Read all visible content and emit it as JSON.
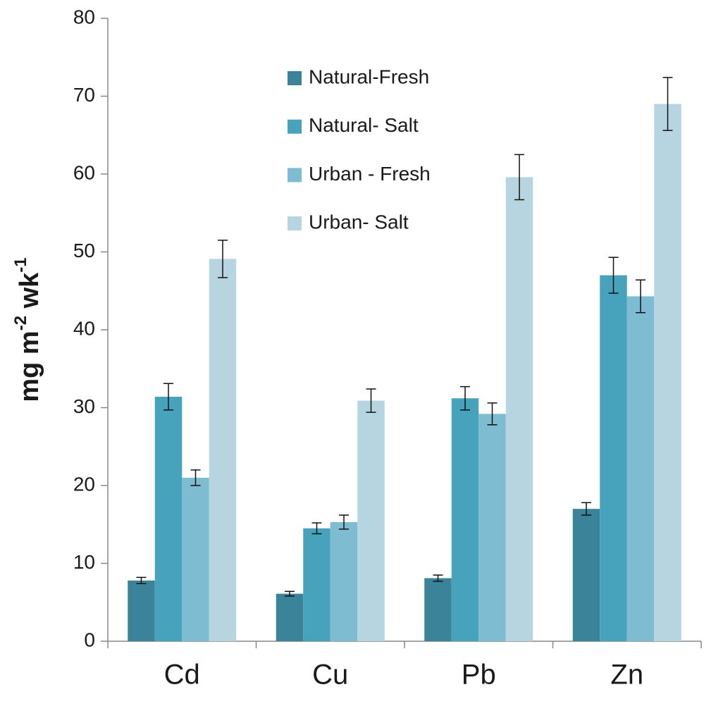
{
  "chart_data": {
    "type": "bar",
    "ylabel_parts": [
      {
        "text": "mg m"
      },
      {
        "text": "-2",
        "sup": true
      },
      {
        "text": " wk"
      },
      {
        "text": "-1",
        "sup": true
      }
    ],
    "categories": [
      "Cd",
      "Cu",
      "Pb",
      "Zn"
    ],
    "series": [
      {
        "name": "Natural-Fresh",
        "color": "#3a8399",
        "values": [
          7.8,
          6.1,
          8.1,
          17.0
        ],
        "errors": [
          0.4,
          0.3,
          0.4,
          0.8
        ]
      },
      {
        "name": "Natural- Salt",
        "color": "#47a2bb",
        "values": [
          31.4,
          14.5,
          31.2,
          47.0
        ],
        "errors": [
          1.7,
          0.7,
          1.5,
          2.3
        ]
      },
      {
        "name": "Urban - Fresh",
        "color": "#7dbcd1",
        "values": [
          21.0,
          15.3,
          29.2,
          44.3
        ],
        "errors": [
          1.0,
          0.9,
          1.4,
          2.1
        ]
      },
      {
        "name": "Urban- Salt",
        "color": "#b6d5e1",
        "values": [
          49.1,
          30.9,
          59.6,
          69.0
        ],
        "errors": [
          2.4,
          1.5,
          2.9,
          3.4
        ]
      }
    ],
    "ylim": [
      0,
      80
    ],
    "yticks": [
      0,
      10,
      20,
      30,
      40,
      50,
      60,
      70,
      80
    ],
    "grid": false,
    "legend": "top"
  }
}
